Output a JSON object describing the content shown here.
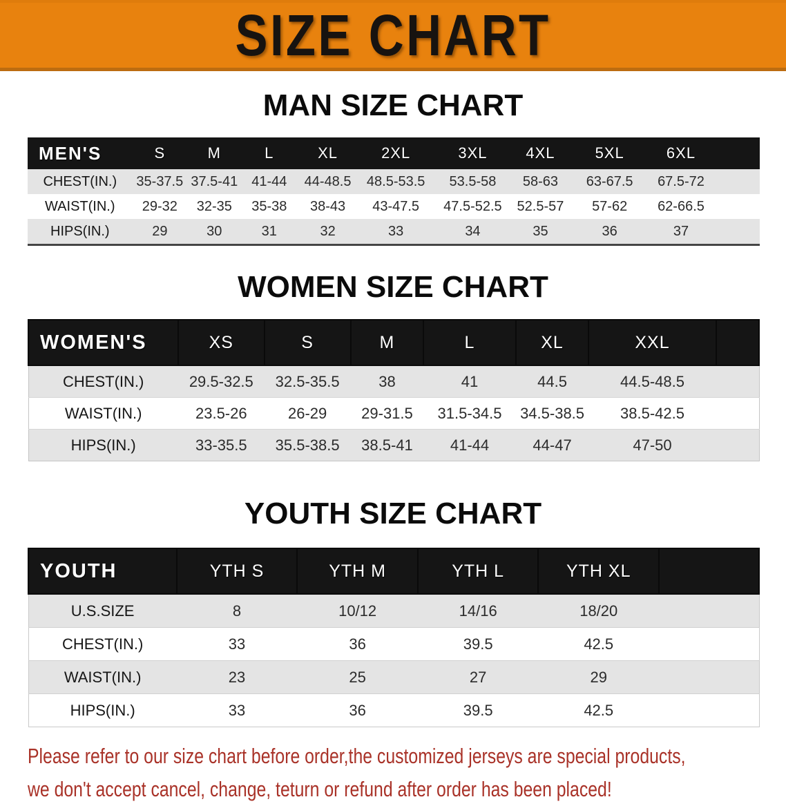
{
  "banner": {
    "title": "SIZE CHART"
  },
  "sections": {
    "men": {
      "heading": "MAN SIZE CHART",
      "table": {
        "label": "MEN'S",
        "columns": [
          "S",
          "M",
          "L",
          "XL",
          "2XL",
          "3XL",
          "4XL",
          "5XL",
          "6XL"
        ],
        "rows": [
          {
            "label": "CHEST(IN.)",
            "values": [
              "35-37.5",
              "37.5-41",
              "41-44",
              "44-48.5",
              "48.5-53.5",
              "53.5-58",
              "58-63",
              "63-67.5",
              "67.5-72"
            ]
          },
          {
            "label": "WAIST(IN.)",
            "values": [
              "29-32",
              "32-35",
              "35-38",
              "38-43",
              "43-47.5",
              "47.5-52.5",
              "52.5-57",
              "57-62",
              "62-66.5"
            ]
          },
          {
            "label": "HIPS(IN.)",
            "values": [
              "29",
              "30",
              "31",
              "32",
              "33",
              "34",
              "35",
              "36",
              "37"
            ]
          }
        ]
      }
    },
    "women": {
      "heading": "WOMEN SIZE CHART",
      "table": {
        "label": "WOMEN'S",
        "columns": [
          "XS",
          "S",
          "M",
          "L",
          "XL",
          "XXL"
        ],
        "rows": [
          {
            "label": "CHEST(IN.)",
            "values": [
              "29.5-32.5",
              "32.5-35.5",
              "38",
              "41",
              "44.5",
              "44.5-48.5"
            ]
          },
          {
            "label": "WAIST(IN.)",
            "values": [
              "23.5-26",
              "26-29",
              "29-31.5",
              "31.5-34.5",
              "34.5-38.5",
              "38.5-42.5"
            ]
          },
          {
            "label": "HIPS(IN.)",
            "values": [
              "33-35.5",
              "35.5-38.5",
              "38.5-41",
              "41-44",
              "44-47",
              "47-50"
            ]
          }
        ]
      }
    },
    "youth": {
      "heading": "YOUTH SIZE CHART",
      "table": {
        "label": "YOUTH",
        "columns": [
          "YTH S",
          "YTH M",
          "YTH L",
          "YTH XL"
        ],
        "rows": [
          {
            "label": "U.S.SIZE",
            "values": [
              "8",
              "10/12",
              "14/16",
              "18/20"
            ]
          },
          {
            "label": "CHEST(IN.)",
            "values": [
              "33",
              "36",
              "39.5",
              "42.5"
            ]
          },
          {
            "label": "WAIST(IN.)",
            "values": [
              "23",
              "25",
              "27",
              "29"
            ]
          },
          {
            "label": "HIPS(IN.)",
            "values": [
              "33",
              "36",
              "39.5",
              "42.5"
            ]
          }
        ]
      }
    }
  },
  "footnote": {
    "lines": [
      "Please refer to our size chart before order,the customized jerseys are special products,",
      "we don't accept cancel, change, teturn or refund after order has been placed!"
    ]
  },
  "colors": {
    "banner_bg": "#E8820E",
    "banner_edge": "#BC6C10",
    "header_bar": "#151515",
    "row_stripe": "#E4E4E4",
    "note_text": "#A93228"
  }
}
